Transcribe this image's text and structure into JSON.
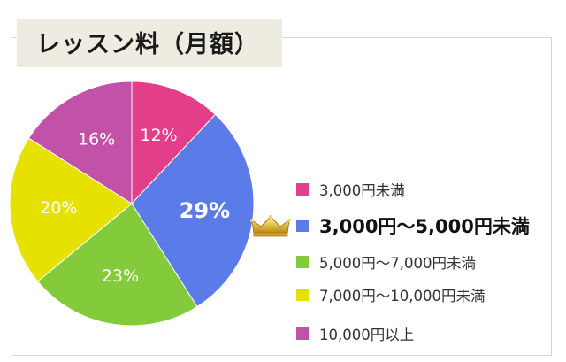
{
  "chart_data": {
    "type": "pie",
    "title": "レッスン料（月額）",
    "categories": [
      "3,000円未満",
      "3,000円〜5,000円未満",
      "5,000円〜7,000円未満",
      "7,000円〜10,000円未満",
      "10,000円以上"
    ],
    "values": [
      12,
      29,
      23,
      20,
      16
    ],
    "value_labels": [
      "12%",
      "29%",
      "23%",
      "20%",
      "16%"
    ],
    "colors": [
      "#e23e8a",
      "#5b7be8",
      "#84cb3c",
      "#e6e100",
      "#c252a8"
    ],
    "highlighted_index": 1,
    "legend_position": "right"
  },
  "crown_icon": "crown-icon"
}
